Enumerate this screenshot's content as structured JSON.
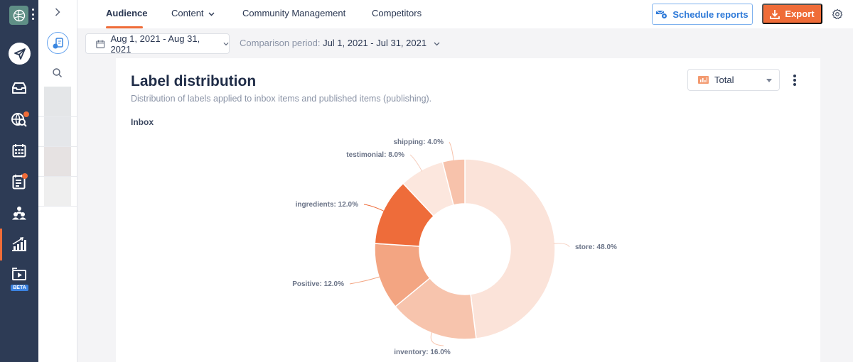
{
  "nav": {
    "tabs": [
      {
        "label": "Audience",
        "active": true
      },
      {
        "label": "Content",
        "has_dropdown": true
      },
      {
        "label": "Community Management"
      },
      {
        "label": "Competitors"
      }
    ],
    "schedule_label": "Schedule reports",
    "export_label": "Export"
  },
  "rail": {
    "beta_label": "BETA",
    "accent": "#ef6c38"
  },
  "filters": {
    "date_range": "Aug 1, 2021 - Aug 31, 2021",
    "comparison_prefix": "Comparison period:",
    "comparison_range": "Jul 1, 2021 - Jul 31, 2021"
  },
  "card": {
    "title": "Label distribution",
    "subtitle": "Distribution of labels applied to inbox items and published items (publishing).",
    "section": "Inbox",
    "view_select": "Total"
  },
  "chart_data": {
    "type": "pie",
    "variant": "donut",
    "title": "Inbox",
    "start": "top, clockwise",
    "slices": [
      {
        "label": "store",
        "value": 48.0,
        "display": "store: 48.0%",
        "color": "#fbe3d9"
      },
      {
        "label": "inventory",
        "value": 16.0,
        "display": "inventory: 16.0%",
        "color": "#f7c4ad"
      },
      {
        "label": "Positive",
        "value": 12.0,
        "display": "Positive: 12.0%",
        "color": "#f3a582"
      },
      {
        "label": "ingredients",
        "value": 12.0,
        "display": "ingredients: 12.0%",
        "color": "#ee6c3a"
      },
      {
        "label": "testimonial",
        "value": 8.0,
        "display": "testimonial: 8.0%",
        "color": "#fce7de"
      },
      {
        "label": "shipping",
        "value": 4.0,
        "display": "shipping: 4.0%",
        "color": "#f7c2ab"
      }
    ]
  }
}
